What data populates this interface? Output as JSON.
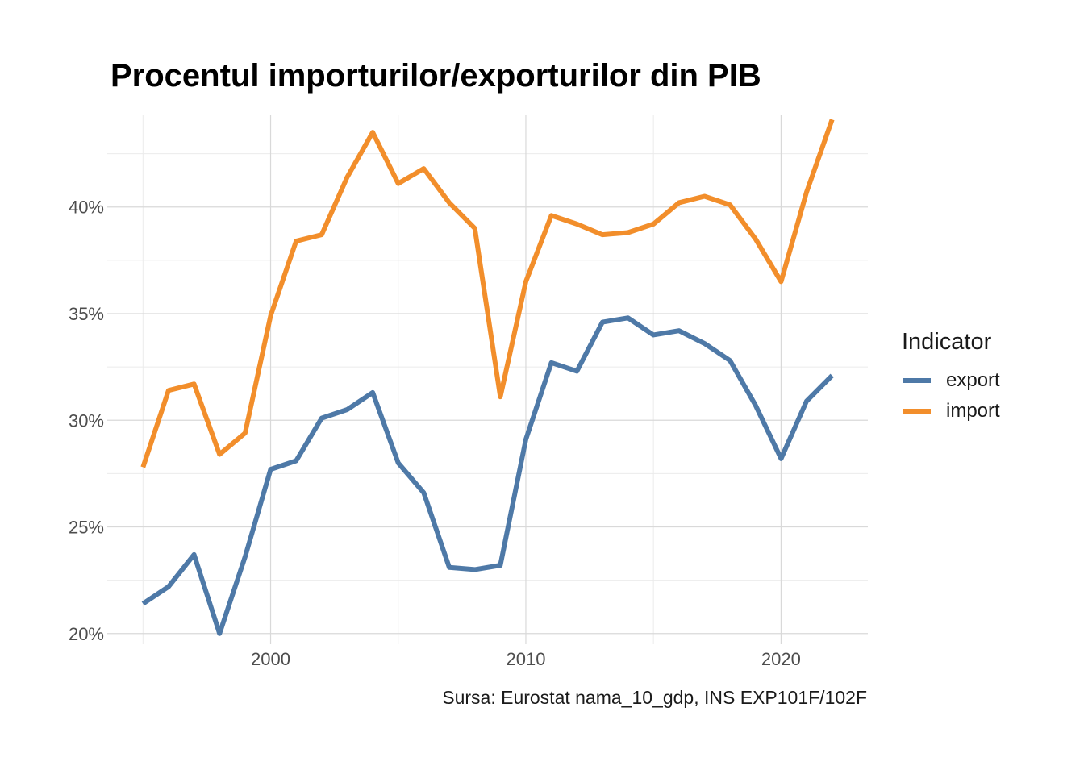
{
  "chart_data": {
    "type": "line",
    "title": "Procentul importurilor/exporturilor din PIB",
    "caption": "Sursa: Eurostat nama_10_gdp, INS EXP101F/102F",
    "xlabel": "",
    "ylabel": "",
    "x": [
      1995,
      1996,
      1997,
      1998,
      1999,
      2000,
      2001,
      2002,
      2003,
      2004,
      2005,
      2006,
      2007,
      2008,
      2009,
      2010,
      2011,
      2012,
      2013,
      2014,
      2015,
      2016,
      2017,
      2018,
      2019,
      2020,
      2021,
      2022
    ],
    "series": [
      {
        "name": "export",
        "color": "#4e79a7",
        "values": [
          21.4,
          22.2,
          23.7,
          20.0,
          23.6,
          27.7,
          28.1,
          30.1,
          30.5,
          31.3,
          28.0,
          26.6,
          23.1,
          23.0,
          23.2,
          29.1,
          32.7,
          32.3,
          34.6,
          34.8,
          34.0,
          34.2,
          33.6,
          32.8,
          30.7,
          28.2,
          30.9,
          32.1
        ]
      },
      {
        "name": "import",
        "color": "#f28e2b",
        "values": [
          27.8,
          31.4,
          31.7,
          28.4,
          29.4,
          34.9,
          38.4,
          38.7,
          41.4,
          43.5,
          41.1,
          41.8,
          40.2,
          39.0,
          31.1,
          36.5,
          39.6,
          39.2,
          38.7,
          38.8,
          39.2,
          40.2,
          40.5,
          40.1,
          38.5,
          36.5,
          40.7,
          44.1
        ]
      }
    ],
    "xlim": [
      1993.6,
      2023.4
    ],
    "ylim": [
      19.5,
      44.3
    ],
    "x_ticks": [
      2000,
      2010,
      2020
    ],
    "x_tick_labels": [
      "2000",
      "2010",
      "2020"
    ],
    "y_ticks": [
      20,
      25,
      30,
      35,
      40
    ],
    "y_tick_labels": [
      "20%",
      "25%",
      "30%",
      "35%",
      "40%"
    ],
    "grid": true,
    "legend": {
      "title": "Indicator",
      "placement": "right",
      "items": [
        "export",
        "import"
      ]
    }
  }
}
